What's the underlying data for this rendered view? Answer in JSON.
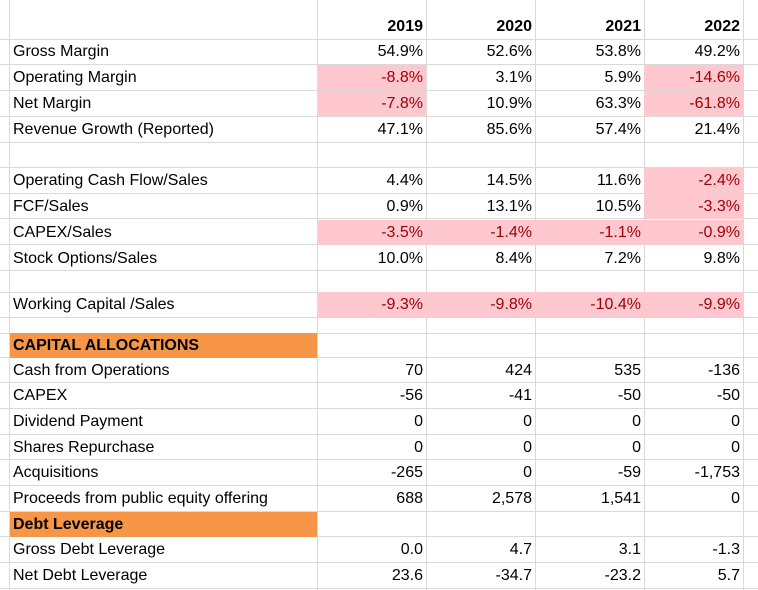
{
  "header": {
    "years": [
      "2019",
      "2020",
      "2021",
      "2022"
    ]
  },
  "rows": {
    "gross_margin": {
      "label": "Gross Margin",
      "values": [
        "54.9%",
        "52.6%",
        "53.8%",
        "49.2%"
      ]
    },
    "operating_margin": {
      "label": "Operating Margin",
      "values": [
        "-8.8%",
        "3.1%",
        "5.9%",
        "-14.6%"
      ]
    },
    "net_margin": {
      "label": "Net Margin",
      "values": [
        "-7.8%",
        "10.9%",
        "63.3%",
        "-61.8%"
      ]
    },
    "revenue_growth": {
      "label": "Revenue Growth (Reported)",
      "values": [
        "47.1%",
        "85.6%",
        "57.4%",
        "21.4%"
      ]
    },
    "ocf_sales": {
      "label": "Operating Cash Flow/Sales",
      "values": [
        "4.4%",
        "14.5%",
        "11.6%",
        "-2.4%"
      ]
    },
    "fcf_sales": {
      "label": "FCF/Sales",
      "values": [
        "0.9%",
        "13.1%",
        "10.5%",
        "-3.3%"
      ]
    },
    "capex_sales": {
      "label": "CAPEX/Sales",
      "values": [
        "-3.5%",
        "-1.4%",
        "-1.1%",
        "-0.9%"
      ]
    },
    "stock_options_sales": {
      "label": "Stock Options/Sales",
      "values": [
        "10.0%",
        "8.4%",
        "7.2%",
        "9.8%"
      ]
    },
    "working_capital_sales": {
      "label": "Working Capital /Sales",
      "values": [
        "-9.3%",
        "-9.8%",
        "-10.4%",
        "-9.9%"
      ]
    },
    "cash_from_operations": {
      "label": "Cash from Operations",
      "values": [
        "70",
        "424",
        "535",
        "-136"
      ]
    },
    "capex": {
      "label": "CAPEX",
      "values": [
        "-56",
        "-41",
        "-50",
        "-50"
      ]
    },
    "dividend_payment": {
      "label": "Dividend Payment",
      "values": [
        "0",
        "0",
        "0",
        "0"
      ]
    },
    "shares_repurchase": {
      "label": "Shares Repurchase",
      "values": [
        "0",
        "0",
        "0",
        "0"
      ]
    },
    "acquisitions": {
      "label": "Acquisitions",
      "values": [
        "-265",
        "0",
        "-59",
        "-1,753"
      ]
    },
    "public_equity_offering": {
      "label": "Proceeds from public equity offering",
      "values": [
        "688",
        "2,578",
        "1,541",
        "0"
      ]
    },
    "gross_debt_leverage": {
      "label": "Gross Debt Leverage",
      "values": [
        "0.0",
        "4.7",
        "3.1",
        "-1.3"
      ]
    },
    "net_debt_leverage": {
      "label": "Net Debt Leverage",
      "values": [
        "23.6",
        "-34.7",
        "-23.2",
        "5.7"
      ]
    }
  },
  "sections": {
    "capital_allocations": "CAPITAL ALLOCATIONS",
    "debt_leverage": "Debt Leverage"
  },
  "colors": {
    "negative_fill": "#ffc7ce",
    "negative_text": "#9c0006",
    "section_fill": "#f79646",
    "gridline": "#d9d9d9"
  }
}
